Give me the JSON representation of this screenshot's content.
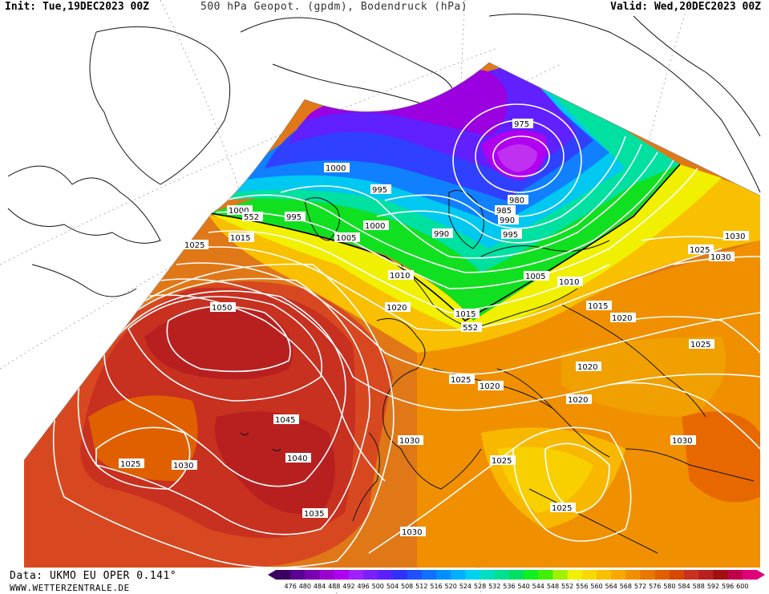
{
  "header": {
    "init": "Init: Tue,19DEC2023 00Z",
    "title": "500 hPa Geopot. (gpdm), Bodendruck (hPa)",
    "valid": "Valid: Wed,20DEC2023 00Z"
  },
  "footer": {
    "data_source": "Data: UKMO EU OPER 0.141°",
    "website": "WWW.WETTERZENTRALE.DE"
  },
  "colors": {
    "background": "#ffffff",
    "isobar": "#ffffff",
    "coastline": "#111111"
  },
  "colorbar": {
    "levels": [
      "476",
      "480",
      "484",
      "488",
      "492",
      "496",
      "500",
      "504",
      "508",
      "512",
      "516",
      "520",
      "524",
      "528",
      "532",
      "536",
      "540",
      "544",
      "548",
      "552",
      "556",
      "560",
      "564",
      "568",
      "572",
      "576",
      "580",
      "584",
      "588",
      "592",
      "596",
      "600"
    ],
    "colors": [
      "#3a0060",
      "#5a0090",
      "#7a00b0",
      "#9a00d0",
      "#b000f0",
      "#a020ff",
      "#7a20ff",
      "#5a20ff",
      "#3030ff",
      "#2050ff",
      "#1070ff",
      "#0090ff",
      "#00b0ff",
      "#00d0f0",
      "#00e0c0",
      "#00e090",
      "#00e060",
      "#10f020",
      "#40f000",
      "#a0f000",
      "#f0f000",
      "#f8d800",
      "#f8c000",
      "#f8a800",
      "#f09000",
      "#e87800",
      "#e06000",
      "#d84800",
      "#c83020",
      "#b82020",
      "#a01010",
      "#c0004a",
      "#e0007a"
    ]
  },
  "isobar_labels": [
    {
      "text": "975"
    },
    {
      "text": "980"
    },
    {
      "text": "985"
    },
    {
      "text": "990"
    },
    {
      "text": "995"
    },
    {
      "text": "1000"
    },
    {
      "text": "1000"
    },
    {
      "text": "1000"
    },
    {
      "text": "995"
    },
    {
      "text": "995"
    },
    {
      "text": "990"
    },
    {
      "text": "1005"
    },
    {
      "text": "1005"
    },
    {
      "text": "1010"
    },
    {
      "text": "1010"
    },
    {
      "text": "1015"
    },
    {
      "text": "1015"
    },
    {
      "text": "1015"
    },
    {
      "text": "1020"
    },
    {
      "text": "1020"
    },
    {
      "text": "1020"
    },
    {
      "text": "1020"
    },
    {
      "text": "1020"
    },
    {
      "text": "1025"
    },
    {
      "text": "1025"
    },
    {
      "text": "1025"
    },
    {
      "text": "1025"
    },
    {
      "text": "1025"
    },
    {
      "text": "1025"
    },
    {
      "text": "1030"
    },
    {
      "text": "1030"
    },
    {
      "text": "1030"
    },
    {
      "text": "1030"
    },
    {
      "text": "1030"
    },
    {
      "text": "1035"
    },
    {
      "text": "1040"
    },
    {
      "text": "1045"
    },
    {
      "text": "1050"
    },
    {
      "text": "1025"
    },
    {
      "text": "1030"
    }
  ],
  "contour_labels": [
    {
      "text": "552"
    },
    {
      "text": "552"
    }
  ]
}
